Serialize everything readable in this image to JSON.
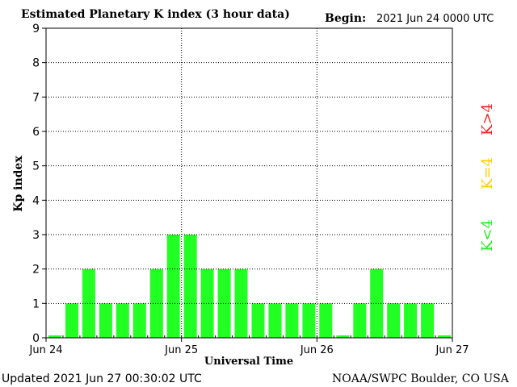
{
  "chart_data": {
    "type": "bar",
    "title": "Estimated Planetary K index (3 hour data)",
    "begin_label": "Begin:",
    "begin_value": "2021 Jun 24 0000 UTC",
    "ylabel": "Kp index",
    "xlabel": "Universal Time",
    "ylim": [
      0,
      9
    ],
    "y_ticks": [
      "0",
      "1",
      "2",
      "3",
      "4",
      "5",
      "6",
      "7",
      "8",
      "9"
    ],
    "x_ticks": [
      "Jun 24",
      "Jun 25",
      "Jun 26",
      "Jun 27"
    ],
    "grid": true,
    "values": [
      0,
      1,
      2,
      1,
      1,
      1,
      2,
      3,
      3,
      2,
      2,
      2,
      1,
      1,
      1,
      1,
      1,
      0,
      1,
      2,
      1,
      1,
      1,
      0
    ],
    "legend": [
      {
        "label": "K<4",
        "color": "#22ee22"
      },
      {
        "label": "K=4",
        "color": "#ffcc00"
      },
      {
        "label": "K>4",
        "color": "#ee2222"
      }
    ],
    "bar_color": "#22ff22"
  },
  "footer": {
    "updated": "Updated 2021 Jun 27 00:30:02 UTC",
    "source": "NOAA/SWPC Boulder, CO USA"
  }
}
